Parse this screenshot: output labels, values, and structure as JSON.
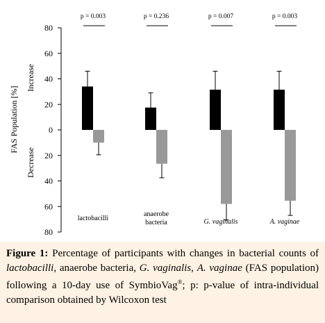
{
  "chart_data": {
    "type": "bar",
    "ylabel": "FAS Population [%]",
    "ylabel_increase": "Increase",
    "ylabel_decrease": "Decrease",
    "yticks": [
      "80",
      "60",
      "40",
      "20",
      "0",
      "20",
      "40",
      "60",
      "80"
    ],
    "ylim": [
      -80,
      80
    ],
    "categories": [
      {
        "label": "lactobacilli",
        "italic": false
      },
      {
        "label": "anaerobe\nbacteria",
        "italic": false
      },
      {
        "label": "G. vaginalis",
        "italic": true
      },
      {
        "label": "A. vaginae",
        "italic": true
      }
    ],
    "p_values": [
      "p = 0.003",
      "p = 0.236",
      "p = 0.007",
      "p = 0.003"
    ],
    "series": [
      {
        "color": "#000000",
        "values": [
          34,
          17.5,
          31.5,
          31.5
        ],
        "error": [
          12,
          11.5,
          14.5,
          14.5
        ]
      },
      {
        "color": "#999999",
        "values": [
          -10,
          -26.5,
          -58,
          -55.5
        ],
        "error": [
          9.5,
          11,
          12.5,
          11.5
        ]
      }
    ]
  },
  "caption": {
    "label": "Figure 1:",
    "segments": [
      {
        "text": " Percentage of participants with changes in bacterial counts of ",
        "italic": false
      },
      {
        "text": "lactobacilli",
        "italic": true
      },
      {
        "text": ", anaerobe bacteria, ",
        "italic": false
      },
      {
        "text": "G. vaginalis",
        "italic": true
      },
      {
        "text": ", ",
        "italic": false
      },
      {
        "text": "A. vaginae",
        "italic": true
      },
      {
        "text": " (FAS population) following a 10-day use of SymbioVag",
        "italic": false
      },
      {
        "text": "®",
        "italic": false,
        "sup": true
      },
      {
        "text": "; p: p-value of intra-individual comparison obtained by Wilcoxon test",
        "italic": false
      }
    ]
  }
}
